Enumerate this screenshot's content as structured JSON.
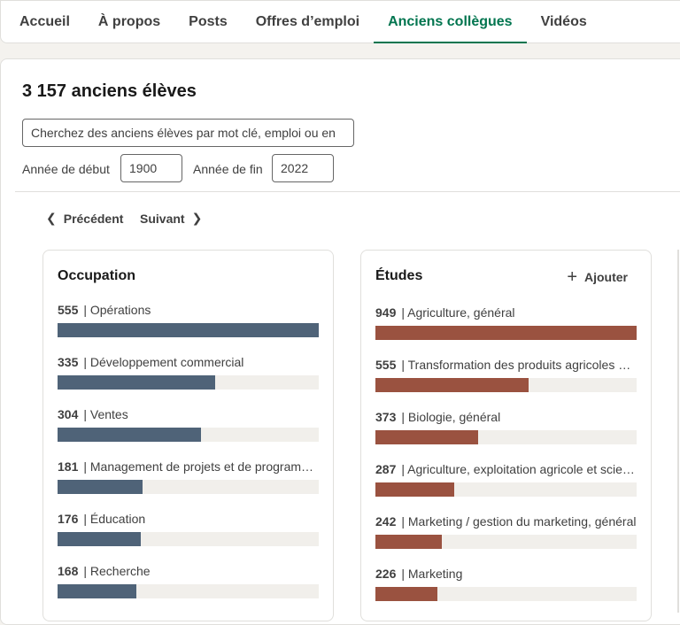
{
  "tabs": [
    {
      "label": "Accueil",
      "active": false
    },
    {
      "label": "À propos",
      "active": false
    },
    {
      "label": "Posts",
      "active": false
    },
    {
      "label": "Offres d’emploi",
      "active": false
    },
    {
      "label": "Anciens collègues",
      "active": true
    },
    {
      "label": "Vidéos",
      "active": false
    }
  ],
  "alumni": {
    "count_title": "3 157 anciens élèves",
    "search_placeholder": "Cherchez des anciens élèves par mot clé, emploi ou en",
    "start_year_label": "Année de début",
    "start_year_value": "1900",
    "end_year_label": "Année de fin",
    "end_year_value": "2022"
  },
  "pager": {
    "prev_label": "Précédent",
    "next_label": "Suivant"
  },
  "colors": {
    "accent": "#01754f",
    "occupation_bar": "#4f6378",
    "studies_bar": "#9a5240"
  },
  "occupation": {
    "title": "Occupation",
    "max": 555,
    "items": [
      {
        "count": "555",
        "label": "| Opérations",
        "value": 555
      },
      {
        "count": "335",
        "label": "| Développement commercial",
        "value": 335
      },
      {
        "count": "304",
        "label": "| Ventes",
        "value": 304
      },
      {
        "count": "181",
        "label": "| Management de projets et de programmes",
        "value": 181
      },
      {
        "count": "176",
        "label": "| Éducation",
        "value": 176
      },
      {
        "count": "168",
        "label": "| Recherche",
        "value": 168
      }
    ]
  },
  "studies": {
    "title": "Études",
    "add_label": "Ajouter",
    "max": 949,
    "items": [
      {
        "count": "949",
        "label": "| Agriculture, général",
        "value": 949
      },
      {
        "count": "555",
        "label": "| Transformation des produits agricoles et alimentaires",
        "value": 555
      },
      {
        "count": "373",
        "label": "| Biologie, général",
        "value": 373
      },
      {
        "count": "287",
        "label": "| Agriculture, exploitation agricole et sciences",
        "value": 287
      },
      {
        "count": "242",
        "label": "| Marketing / gestion du marketing, général",
        "value": 242
      },
      {
        "count": "226",
        "label": "| Marketing",
        "value": 226
      }
    ]
  }
}
